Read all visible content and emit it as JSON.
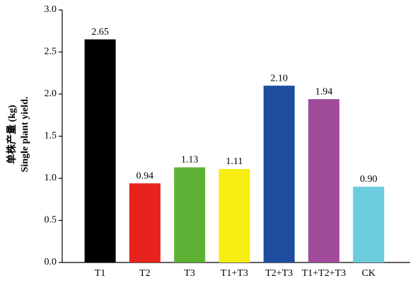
{
  "chart_data": {
    "type": "bar",
    "ylabel": [
      "单株产量 (kg)",
      "Single plant yield."
    ],
    "categories": [
      "T1",
      "T2",
      "T3",
      "T1+T3",
      "T2+T3",
      "T1+T2+T3",
      "CK"
    ],
    "values": [
      2.65,
      0.94,
      1.13,
      1.11,
      2.1,
      1.94,
      0.9
    ],
    "value_labels": [
      "2.65",
      "0.94",
      "1.13",
      "1.11",
      "2.10",
      "1.94",
      "0.90"
    ],
    "colors": [
      "#000000",
      "#e8221c",
      "#5db135",
      "#f5ee10",
      "#1f4e9e",
      "#a04a9c",
      "#6ccbdc"
    ],
    "ylim": [
      0,
      3
    ],
    "yticks": [
      {
        "value": 0,
        "label": "0.0"
      },
      {
        "value": 0.5,
        "label": "0.5"
      },
      {
        "value": 1,
        "label": "1.0"
      },
      {
        "value": 1.5,
        "label": "1.5"
      },
      {
        "value": 2,
        "label": "2.0"
      },
      {
        "value": 2.5,
        "label": "2.5"
      },
      {
        "value": 3,
        "label": "3.0"
      }
    ]
  }
}
